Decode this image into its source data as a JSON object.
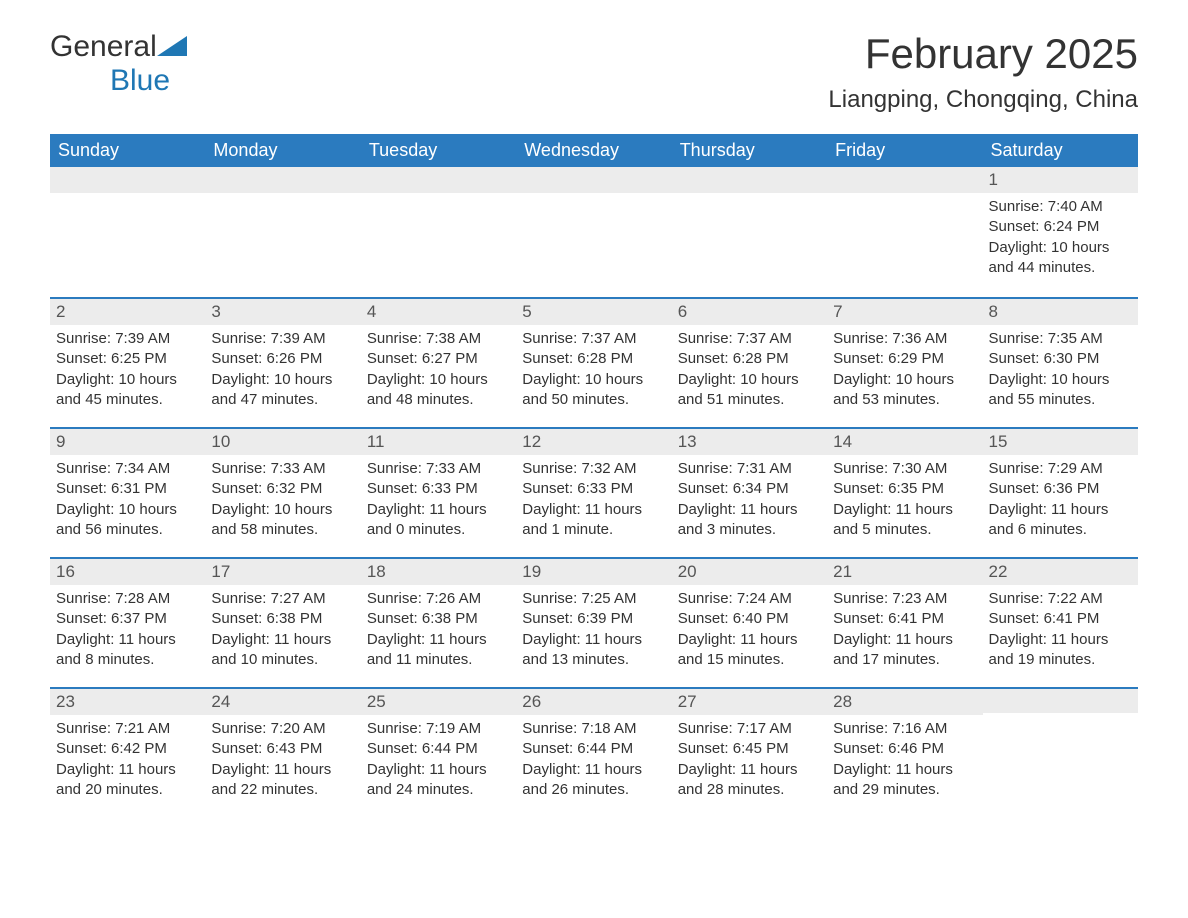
{
  "logo": {
    "text_general": "General",
    "text_blue": "Blue"
  },
  "title": "February 2025",
  "location": "Liangping, Chongqing, China",
  "colors": {
    "header_bg": "#2b7bbf",
    "header_text": "#ffffff",
    "band_bg": "#ececec",
    "border": "#2b7bbf",
    "body_text": "#333333",
    "logo_blue": "#1f77b4"
  },
  "day_headers": [
    "Sunday",
    "Monday",
    "Tuesday",
    "Wednesday",
    "Thursday",
    "Friday",
    "Saturday"
  ],
  "weeks": [
    [
      null,
      null,
      null,
      null,
      null,
      null,
      {
        "n": "1",
        "sunrise": "Sunrise: 7:40 AM",
        "sunset": "Sunset: 6:24 PM",
        "daylight1": "Daylight: 10 hours",
        "daylight2": "and 44 minutes."
      }
    ],
    [
      {
        "n": "2",
        "sunrise": "Sunrise: 7:39 AM",
        "sunset": "Sunset: 6:25 PM",
        "daylight1": "Daylight: 10 hours",
        "daylight2": "and 45 minutes."
      },
      {
        "n": "3",
        "sunrise": "Sunrise: 7:39 AM",
        "sunset": "Sunset: 6:26 PM",
        "daylight1": "Daylight: 10 hours",
        "daylight2": "and 47 minutes."
      },
      {
        "n": "4",
        "sunrise": "Sunrise: 7:38 AM",
        "sunset": "Sunset: 6:27 PM",
        "daylight1": "Daylight: 10 hours",
        "daylight2": "and 48 minutes."
      },
      {
        "n": "5",
        "sunrise": "Sunrise: 7:37 AM",
        "sunset": "Sunset: 6:28 PM",
        "daylight1": "Daylight: 10 hours",
        "daylight2": "and 50 minutes."
      },
      {
        "n": "6",
        "sunrise": "Sunrise: 7:37 AM",
        "sunset": "Sunset: 6:28 PM",
        "daylight1": "Daylight: 10 hours",
        "daylight2": "and 51 minutes."
      },
      {
        "n": "7",
        "sunrise": "Sunrise: 7:36 AM",
        "sunset": "Sunset: 6:29 PM",
        "daylight1": "Daylight: 10 hours",
        "daylight2": "and 53 minutes."
      },
      {
        "n": "8",
        "sunrise": "Sunrise: 7:35 AM",
        "sunset": "Sunset: 6:30 PM",
        "daylight1": "Daylight: 10 hours",
        "daylight2": "and 55 minutes."
      }
    ],
    [
      {
        "n": "9",
        "sunrise": "Sunrise: 7:34 AM",
        "sunset": "Sunset: 6:31 PM",
        "daylight1": "Daylight: 10 hours",
        "daylight2": "and 56 minutes."
      },
      {
        "n": "10",
        "sunrise": "Sunrise: 7:33 AM",
        "sunset": "Sunset: 6:32 PM",
        "daylight1": "Daylight: 10 hours",
        "daylight2": "and 58 minutes."
      },
      {
        "n": "11",
        "sunrise": "Sunrise: 7:33 AM",
        "sunset": "Sunset: 6:33 PM",
        "daylight1": "Daylight: 11 hours",
        "daylight2": "and 0 minutes."
      },
      {
        "n": "12",
        "sunrise": "Sunrise: 7:32 AM",
        "sunset": "Sunset: 6:33 PM",
        "daylight1": "Daylight: 11 hours",
        "daylight2": "and 1 minute."
      },
      {
        "n": "13",
        "sunrise": "Sunrise: 7:31 AM",
        "sunset": "Sunset: 6:34 PM",
        "daylight1": "Daylight: 11 hours",
        "daylight2": "and 3 minutes."
      },
      {
        "n": "14",
        "sunrise": "Sunrise: 7:30 AM",
        "sunset": "Sunset: 6:35 PM",
        "daylight1": "Daylight: 11 hours",
        "daylight2": "and 5 minutes."
      },
      {
        "n": "15",
        "sunrise": "Sunrise: 7:29 AM",
        "sunset": "Sunset: 6:36 PM",
        "daylight1": "Daylight: 11 hours",
        "daylight2": "and 6 minutes."
      }
    ],
    [
      {
        "n": "16",
        "sunrise": "Sunrise: 7:28 AM",
        "sunset": "Sunset: 6:37 PM",
        "daylight1": "Daylight: 11 hours",
        "daylight2": "and 8 minutes."
      },
      {
        "n": "17",
        "sunrise": "Sunrise: 7:27 AM",
        "sunset": "Sunset: 6:38 PM",
        "daylight1": "Daylight: 11 hours",
        "daylight2": "and 10 minutes."
      },
      {
        "n": "18",
        "sunrise": "Sunrise: 7:26 AM",
        "sunset": "Sunset: 6:38 PM",
        "daylight1": "Daylight: 11 hours",
        "daylight2": "and 11 minutes."
      },
      {
        "n": "19",
        "sunrise": "Sunrise: 7:25 AM",
        "sunset": "Sunset: 6:39 PM",
        "daylight1": "Daylight: 11 hours",
        "daylight2": "and 13 minutes."
      },
      {
        "n": "20",
        "sunrise": "Sunrise: 7:24 AM",
        "sunset": "Sunset: 6:40 PM",
        "daylight1": "Daylight: 11 hours",
        "daylight2": "and 15 minutes."
      },
      {
        "n": "21",
        "sunrise": "Sunrise: 7:23 AM",
        "sunset": "Sunset: 6:41 PM",
        "daylight1": "Daylight: 11 hours",
        "daylight2": "and 17 minutes."
      },
      {
        "n": "22",
        "sunrise": "Sunrise: 7:22 AM",
        "sunset": "Sunset: 6:41 PM",
        "daylight1": "Daylight: 11 hours",
        "daylight2": "and 19 minutes."
      }
    ],
    [
      {
        "n": "23",
        "sunrise": "Sunrise: 7:21 AM",
        "sunset": "Sunset: 6:42 PM",
        "daylight1": "Daylight: 11 hours",
        "daylight2": "and 20 minutes."
      },
      {
        "n": "24",
        "sunrise": "Sunrise: 7:20 AM",
        "sunset": "Sunset: 6:43 PM",
        "daylight1": "Daylight: 11 hours",
        "daylight2": "and 22 minutes."
      },
      {
        "n": "25",
        "sunrise": "Sunrise: 7:19 AM",
        "sunset": "Sunset: 6:44 PM",
        "daylight1": "Daylight: 11 hours",
        "daylight2": "and 24 minutes."
      },
      {
        "n": "26",
        "sunrise": "Sunrise: 7:18 AM",
        "sunset": "Sunset: 6:44 PM",
        "daylight1": "Daylight: 11 hours",
        "daylight2": "and 26 minutes."
      },
      {
        "n": "27",
        "sunrise": "Sunrise: 7:17 AM",
        "sunset": "Sunset: 6:45 PM",
        "daylight1": "Daylight: 11 hours",
        "daylight2": "and 28 minutes."
      },
      {
        "n": "28",
        "sunrise": "Sunrise: 7:16 AM",
        "sunset": "Sunset: 6:46 PM",
        "daylight1": "Daylight: 11 hours",
        "daylight2": "and 29 minutes."
      },
      null
    ]
  ]
}
